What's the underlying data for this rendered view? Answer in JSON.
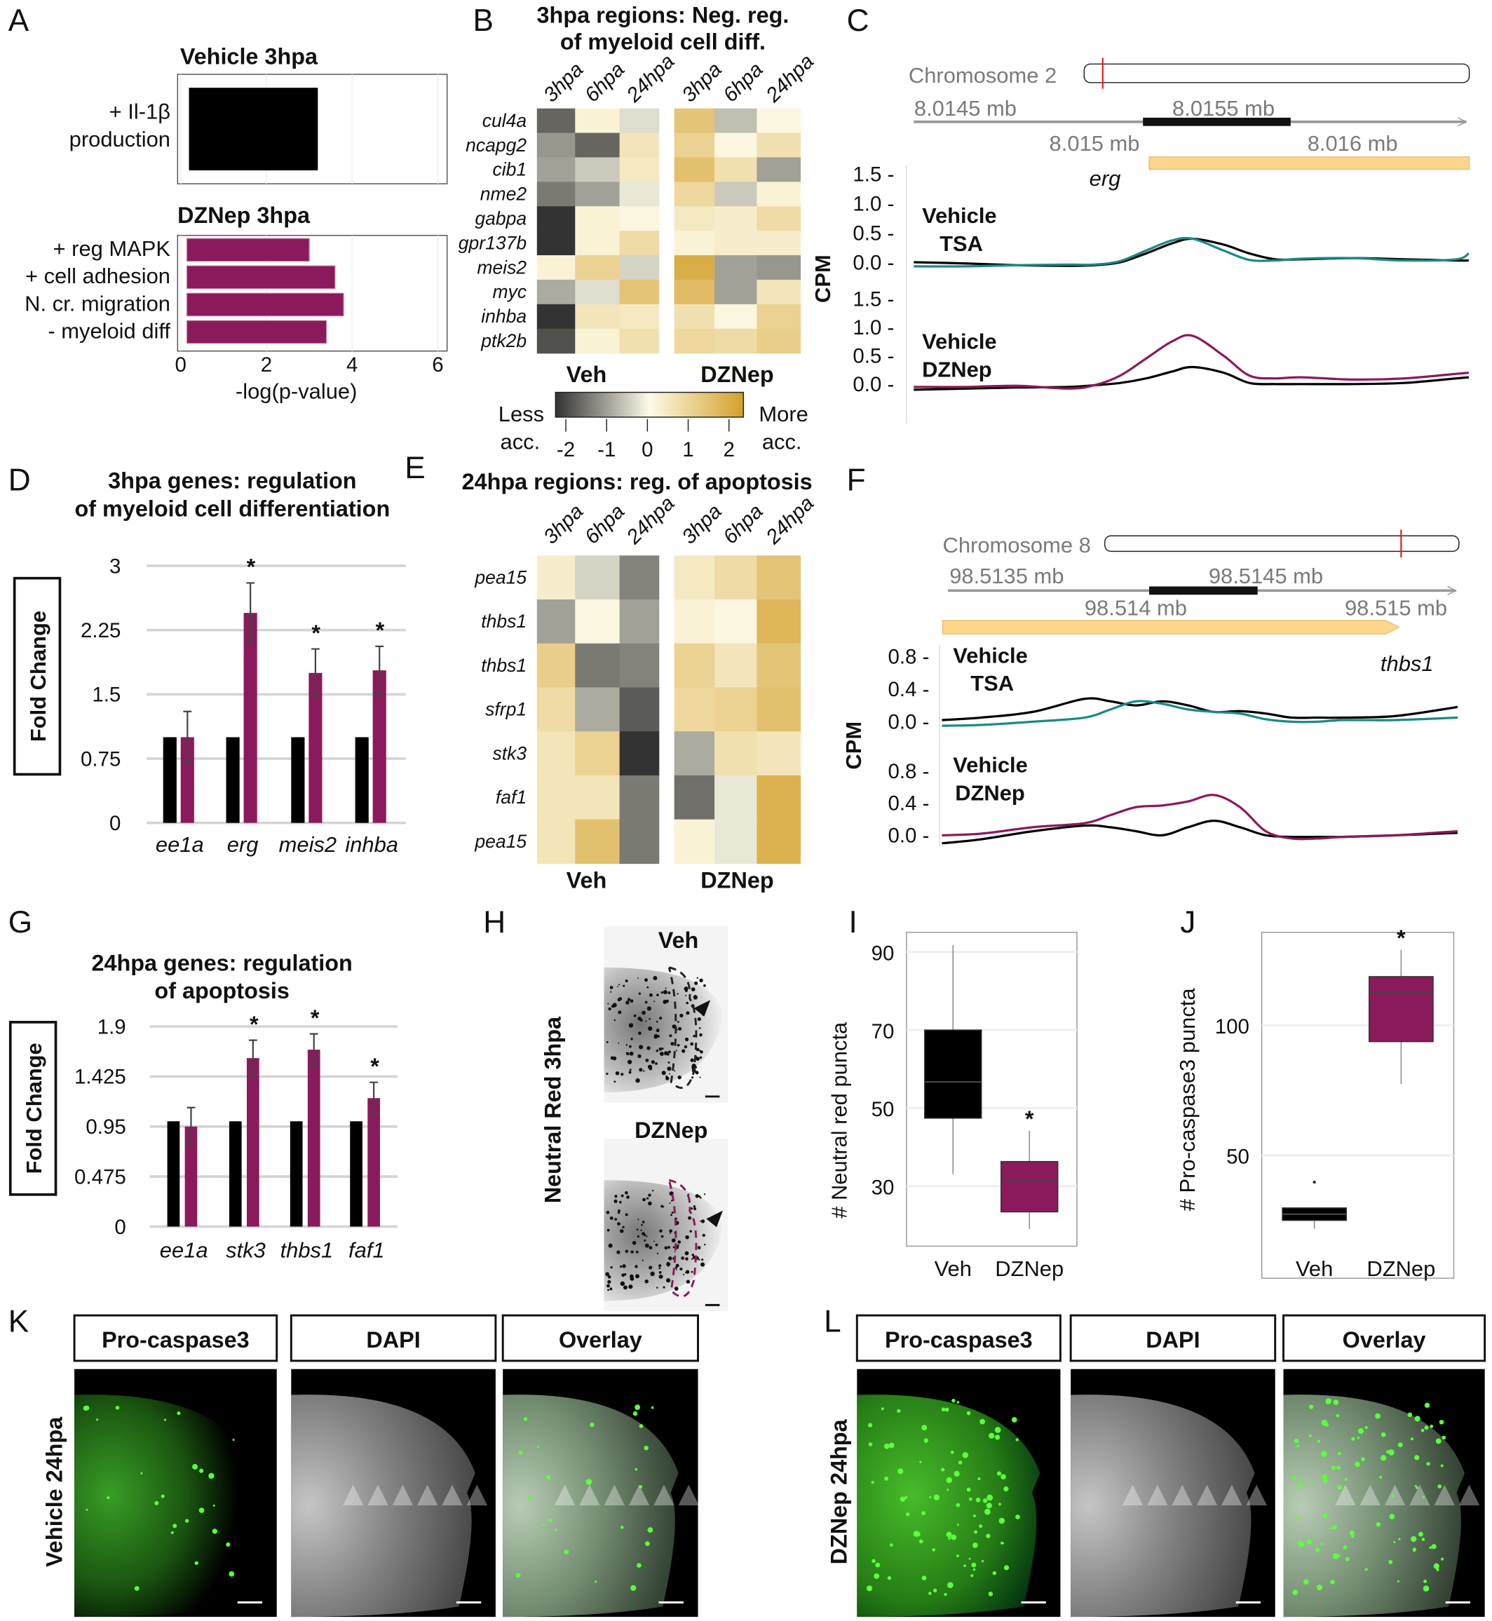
{
  "panel_letters": {
    "A": "A",
    "B": "B",
    "C": "C",
    "D": "D",
    "E": "E",
    "F": "F",
    "G": "G",
    "H": "H",
    "I": "I",
    "J": "J",
    "K": "K",
    "L": "L"
  },
  "colors": {
    "vehicle": "#000000",
    "dznep": "#8b1a5c",
    "tsa": "#1a8a85",
    "heat_low": "#333333",
    "heat_mid": "#fdfbe8",
    "heat_high": "#d4a02a",
    "gene_track": "#fcd68a",
    "chrom_marker": "#e02020",
    "green": "#1fbf1f"
  },
  "chart_data": [
    {
      "id": "A",
      "type": "bar",
      "orientation": "horizontal",
      "subplots": [
        {
          "title": "Vehicle 3hpa",
          "categories": [
            "+ Il-1β",
            "production"
          ],
          "values": [
            3.2
          ],
          "color": "#000000"
        },
        {
          "title": "DZNep 3hpa",
          "categories": [
            "+ reg MAPK",
            "+ cell adhesion",
            "N. cr. migration",
            "- myeloid  diff"
          ],
          "values": [
            3.0,
            3.6,
            3.8,
            3.4
          ],
          "color": "#8b1a5c"
        }
      ],
      "xlabel": "-log(p-value)",
      "xlim": [
        0,
        6.2
      ],
      "xticks": [
        "0",
        "2",
        "4",
        "6"
      ]
    },
    {
      "id": "B",
      "type": "heatmap",
      "title": [
        "3hpa regions: Neg. reg.",
        "of myeloid cell diff."
      ],
      "rows": [
        "cul4a",
        "ncapg2",
        "cib1",
        "nme2",
        "gabpa",
        "gpr137b",
        "meis2",
        "myc",
        "inhba",
        "ptk2b"
      ],
      "columns": [
        "3hpa",
        "6hpa",
        "24hpa"
      ],
      "groups": [
        "Veh",
        "DZNep"
      ],
      "values": [
        [
          -1.5,
          0.2,
          -0.3,
          1.2,
          -0.6,
          0.1
        ],
        [
          -1.0,
          -1.5,
          0.5,
          0.9,
          0.1,
          0.6
        ],
        [
          -0.9,
          -0.5,
          0.4,
          1.3,
          0.6,
          -0.9
        ],
        [
          -1.3,
          -0.9,
          -0.2,
          0.8,
          -0.5,
          0.2
        ],
        [
          -2.0,
          0.2,
          0.1,
          0.4,
          0.3,
          0.7
        ],
        [
          -2.0,
          0.2,
          0.7,
          0.2,
          0.3,
          0.3
        ],
        [
          0.2,
          0.9,
          -0.4,
          1.7,
          -0.9,
          -1.0
        ],
        [
          -0.8,
          -0.3,
          1.2,
          1.4,
          -0.9,
          0.5
        ],
        [
          -2.0,
          0.5,
          0.4,
          0.6,
          0.1,
          0.9
        ],
        [
          -1.7,
          0.2,
          0.6,
          0.8,
          0.7,
          1.0
        ]
      ],
      "colorbar": {
        "range": [
          -2,
          2
        ],
        "ticks": [
          "-2",
          "-1",
          "0",
          "1",
          "2"
        ],
        "low_label": [
          "Less",
          "acc."
        ],
        "high_label": [
          "More",
          "acc."
        ]
      }
    },
    {
      "id": "C",
      "type": "line",
      "chromosome": "Chromosome 2",
      "gene": "erg",
      "ylabel": "CPM",
      "top_axis_labels": [
        "8.0145 mb",
        "8.0155 mb"
      ],
      "bottom_axis_labels": [
        "8.015 mb",
        "8.016 mb"
      ],
      "yticks": [
        "1.5 -",
        "1.0 -",
        "0.5 -",
        "0.0 -"
      ],
      "ytick_values": [
        1.5,
        1.0,
        0.5,
        0.0
      ],
      "x": [
        8.0143,
        8.0145,
        8.0147,
        8.0149,
        8.015,
        8.0151,
        8.0152,
        8.0153,
        8.01538,
        8.0155,
        8.0156,
        8.0157,
        8.0158,
        8.016,
        8.0162,
        8.0164,
        8.01645
      ],
      "tracks": [
        {
          "series": [
            {
              "name": "Vehicle",
              "color": "#000000",
              "values": [
                0.0,
                -0.02,
                -0.05,
                -0.06,
                -0.05,
                0.0,
                0.15,
                0.32,
                0.4,
                0.3,
                0.15,
                0.05,
                0.05,
                0.07,
                0.05,
                0.03,
                0.03
              ]
            },
            {
              "name": "TSA",
              "color": "#1a8a85",
              "values": [
                -0.07,
                -0.07,
                -0.05,
                -0.04,
                -0.04,
                0.02,
                0.2,
                0.37,
                0.4,
                0.2,
                0.04,
                0.03,
                0.06,
                0.07,
                0.03,
                0.05,
                0.15
              ]
            }
          ]
        },
        {
          "series": [
            {
              "name": "Vehicle",
              "color": "#000000",
              "values": [
                -0.1,
                -0.08,
                -0.06,
                -0.05,
                -0.02,
                0.02,
                0.1,
                0.22,
                0.3,
                0.2,
                0.02,
                0.0,
                0.0,
                0.0,
                0.02,
                0.1,
                0.12
              ]
            },
            {
              "name": "DZNep",
              "color": "#8b1a5c",
              "values": [
                -0.05,
                -0.05,
                -0.03,
                -0.08,
                -0.02,
                0.15,
                0.45,
                0.75,
                0.85,
                0.5,
                0.15,
                0.1,
                0.12,
                0.08,
                0.1,
                0.18,
                0.2
              ]
            }
          ]
        }
      ]
    },
    {
      "id": "D",
      "type": "bar",
      "title": [
        "3hpa genes: regulation",
        "of myeloid cell differentiation"
      ],
      "categories": [
        "ee1a",
        "erg",
        "meis2",
        "inhba"
      ],
      "series": [
        {
          "color": "#000000",
          "values": [
            1,
            1,
            1,
            1
          ],
          "errors": [
            0,
            0,
            0,
            0
          ]
        },
        {
          "color": "#8b1a5c",
          "values": [
            1.0,
            2.45,
            1.75,
            1.78
          ],
          "errors": [
            0.3,
            0.35,
            0.28,
            0.28
          ]
        }
      ],
      "significant": [
        false,
        true,
        true,
        true
      ],
      "sig_mark": "*",
      "ylabel": "Fold Change",
      "ylim": [
        0,
        3
      ],
      "yticks": [
        "0",
        "0.75",
        "1.5",
        "2.25",
        "3"
      ],
      "ytick_values": [
        0,
        0.75,
        1.5,
        2.25,
        3
      ]
    },
    {
      "id": "E",
      "type": "heatmap",
      "title": [
        "24hpa regions: reg. of apoptosis"
      ],
      "rows": [
        "pea15",
        "thbs1",
        "thbs1",
        "sfrp1",
        "stk3",
        "faf1",
        "pea15"
      ],
      "columns": [
        "3hpa",
        "6hpa",
        "24hpa"
      ],
      "groups": [
        "Veh",
        "DZNep"
      ],
      "values": [
        [
          0.3,
          -0.4,
          -1.2,
          0.4,
          0.7,
          1.2
        ],
        [
          -0.9,
          0.1,
          -0.9,
          0.2,
          0.1,
          1.5
        ],
        [
          1.0,
          -1.3,
          -1.2,
          0.9,
          0.5,
          1.2
        ],
        [
          0.7,
          -0.8,
          -1.6,
          0.8,
          0.9,
          1.3
        ],
        [
          0.5,
          0.9,
          -2.0,
          -0.8,
          0.6,
          0.5
        ],
        [
          0.5,
          0.5,
          -1.3,
          -1.4,
          -0.2,
          1.6
        ],
        [
          0.5,
          1.3,
          -1.3,
          0.2,
          -0.2,
          1.6
        ]
      ]
    },
    {
      "id": "F",
      "type": "line",
      "chromosome": "Chromosome 8",
      "gene": "thbs1",
      "ylabel": "CPM",
      "top_axis_labels": [
        "98.5135 mb",
        "98.5145 mb"
      ],
      "bottom_axis_labels": [
        "98.514 mb",
        "98.515 mb"
      ],
      "yticks": [
        "0.8 -",
        "0.4 -",
        "0.0 -"
      ],
      "ytick_values": [
        0.8,
        0.4,
        0.0
      ],
      "x": [
        98.51325,
        98.5134,
        98.5136,
        98.5138,
        98.5139,
        98.514,
        98.5141,
        98.5142,
        98.5143,
        98.5144,
        98.5145,
        98.5146,
        98.5147,
        98.5148,
        98.515,
        98.51524
      ],
      "tracks": [
        {
          "series": [
            {
              "name": "Vehicle",
              "color": "#000000",
              "values": [
                0.02,
                0.05,
                0.12,
                0.28,
                0.25,
                0.2,
                0.25,
                0.2,
                0.12,
                0.13,
                0.1,
                0.05,
                0.05,
                0.05,
                0.07,
                0.18
              ]
            },
            {
              "name": "TSA",
              "color": "#1a8a85",
              "values": [
                -0.05,
                -0.04,
                0.0,
                0.05,
                0.15,
                0.25,
                0.22,
                0.15,
                0.12,
                0.1,
                0.03,
                0.0,
                0.0,
                0.02,
                0.02,
                0.05
              ]
            }
          ]
        },
        {
          "series": [
            {
              "name": "Vehicle",
              "color": "#000000",
              "values": [
                -0.1,
                -0.05,
                0.05,
                0.12,
                0.1,
                0.05,
                0.0,
                0.1,
                0.18,
                0.1,
                0.0,
                -0.02,
                -0.02,
                -0.02,
                0.0,
                0.03
              ]
            },
            {
              "name": "DZNep",
              "color": "#8b1a5c",
              "values": [
                0.0,
                0.02,
                0.1,
                0.15,
                0.25,
                0.35,
                0.37,
                0.42,
                0.5,
                0.35,
                0.05,
                -0.04,
                -0.04,
                -0.02,
                0.0,
                0.05
              ]
            }
          ]
        }
      ]
    },
    {
      "id": "G",
      "type": "bar",
      "title": [
        "24hpa genes: regulation",
        "of apoptosis"
      ],
      "categories": [
        "ee1a",
        "stk3",
        "thbs1",
        "faf1"
      ],
      "series": [
        {
          "color": "#000000",
          "values": [
            1,
            1,
            1,
            1
          ],
          "errors": [
            0,
            0,
            0,
            0
          ]
        },
        {
          "color": "#8b1a5c",
          "values": [
            0.95,
            1.6,
            1.68,
            1.22
          ],
          "errors": [
            0.18,
            0.17,
            0.15,
            0.15
          ]
        }
      ],
      "significant": [
        false,
        true,
        true,
        true
      ],
      "sig_mark": "*",
      "ylabel": "Fold Change",
      "ylim": [
        0,
        1.9
      ],
      "yticks": [
        "0",
        "0.475",
        "0.95",
        "1.425",
        "1.9"
      ],
      "ytick_values": [
        0,
        0.475,
        0.95,
        1.425,
        1.9
      ]
    },
    {
      "id": "I",
      "type": "box",
      "categories": [
        "Veh",
        "DZNep"
      ],
      "boxes": [
        {
          "min": 33,
          "q1": 47.4,
          "median": 56.7,
          "q3": 70,
          "max": 91.8,
          "color": "#000000"
        },
        {
          "min": 19,
          "q1": 23.4,
          "median": 31.6,
          "q3": 36.3,
          "max": 44.2,
          "color": "#8b1a5c"
        }
      ],
      "significant": [
        false,
        true
      ],
      "sig_mark": "*",
      "ylabel": "# Neutral red puncta",
      "ylim": [
        14,
        95
      ],
      "yticks": [
        "30",
        "50",
        "70",
        "90"
      ],
      "ytick_values": [
        30,
        50,
        70,
        90
      ]
    },
    {
      "id": "J",
      "type": "box",
      "categories": [
        "Veh",
        "DZNep"
      ],
      "boxes": [
        {
          "min": 21.8,
          "q1": 25,
          "median": 27.4,
          "q3": 29.8,
          "max": 30,
          "outliers": [
            39.7
          ],
          "color": "#000000"
        },
        {
          "min": 77.4,
          "q1": 93.7,
          "median": 112.7,
          "q3": 118.7,
          "max": 129,
          "color": "#8b1a5c"
        }
      ],
      "significant": [
        false,
        true
      ],
      "sig_mark": "*",
      "ylabel": "# Pro-caspase3 puncta",
      "ylim": [
        12,
        136
      ],
      "yticks": [
        "50",
        "100"
      ],
      "ytick_values": [
        50,
        100
      ]
    }
  ],
  "panel_H": {
    "top_label": "Veh",
    "bottom_label": "DZNep",
    "side_label": "Neutral Red  3hpa"
  },
  "panel_K": {
    "headers": [
      "Pro-caspase3",
      "DAPI",
      "Overlay"
    ],
    "side_label": "Vehicle 24hpa"
  },
  "panel_L": {
    "headers": [
      "Pro-caspase3",
      "DAPI",
      "Overlay"
    ],
    "side_label": "DZNep 24hpa"
  }
}
